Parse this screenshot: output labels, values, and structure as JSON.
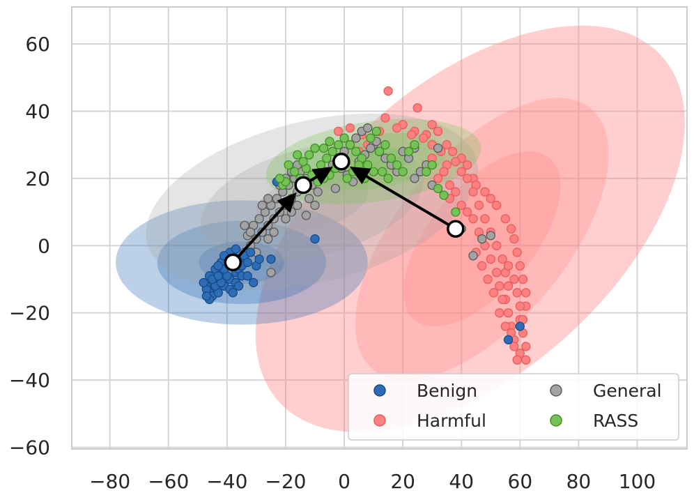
{
  "chart_data": {
    "type": "scatter",
    "title": "",
    "xlabel": "",
    "ylabel": "",
    "xlim": [
      -93,
      117
    ],
    "ylim": [
      -60.5,
      71
    ],
    "x_ticks": [
      -80,
      -60,
      -40,
      -20,
      0,
      20,
      40,
      60,
      80,
      100
    ],
    "y_ticks": [
      60,
      40,
      20,
      0,
      -20,
      -40,
      -60
    ],
    "x_tick_labels": [
      "−80",
      "−60",
      "−40",
      "−20",
      "0",
      "20",
      "40",
      "60",
      "80",
      "100"
    ],
    "y_tick_labels": [
      "60",
      "40",
      "20",
      "0",
      "−20",
      "−40",
      "−60"
    ],
    "grid": true,
    "legend_position": "lower-right",
    "legend": [
      "Benign",
      "Harmful",
      "General",
      "RASS"
    ],
    "series": [
      {
        "name": "Benign",
        "color": "#2e6db5",
        "edge": "#154a8a",
        "centroid": [
          -38,
          -5
        ],
        "ellipse": {
          "cx": -35,
          "cy": -5,
          "rx": 43,
          "ry": 18.5,
          "angle": 0
        },
        "points": [
          [
            -38,
            -5
          ],
          [
            -40,
            -6
          ],
          [
            -42,
            -8
          ],
          [
            -43,
            -10
          ],
          [
            -44,
            -12
          ],
          [
            -45,
            -13
          ],
          [
            -46,
            -14
          ],
          [
            -47,
            -12
          ],
          [
            -45,
            -15
          ],
          [
            -43,
            -14
          ],
          [
            -41,
            -12
          ],
          [
            -39,
            -10
          ],
          [
            -37,
            -8
          ],
          [
            -36,
            -7
          ],
          [
            -35,
            -6
          ],
          [
            -38,
            -3
          ],
          [
            -40,
            -4
          ],
          [
            -42,
            -5
          ],
          [
            -44,
            -7
          ],
          [
            -46,
            -9
          ],
          [
            -47,
            -13
          ],
          [
            -48,
            -11
          ],
          [
            -46,
            -16
          ],
          [
            -44,
            -12
          ],
          [
            -42,
            -11
          ],
          [
            -40,
            -9
          ],
          [
            -41,
            -7
          ],
          [
            -43,
            -6
          ],
          [
            -39,
            -2
          ],
          [
            -37,
            -1
          ],
          [
            -36,
            -4
          ],
          [
            -34,
            -3
          ],
          [
            -35,
            -9
          ],
          [
            -37,
            -11
          ],
          [
            -39,
            -13
          ],
          [
            -45,
            -10
          ],
          [
            -47,
            -15
          ],
          [
            -33,
            -5
          ],
          [
            -32,
            -2
          ],
          [
            -30,
            -6
          ],
          [
            -29,
            -4
          ],
          [
            -33,
            -9
          ],
          [
            -31,
            -11
          ],
          [
            -41,
            -3
          ],
          [
            -43,
            -9
          ],
          [
            -36,
            -12
          ],
          [
            -38,
            -14
          ],
          [
            -25,
            -4
          ],
          [
            -23,
            19
          ],
          [
            -10,
            2
          ],
          [
            56,
            -28
          ],
          [
            60,
            -24
          ]
        ]
      },
      {
        "name": "Harmful",
        "color": "#ff8080",
        "edge": "#e65c5c",
        "centroid": [
          38,
          5
        ],
        "ellipse_outer": {
          "cx": 43,
          "cy": 5,
          "rx": 88,
          "ry": 43,
          "angle": -42
        },
        "ellipse_inner": {
          "cx": 47,
          "cy": 2,
          "rx": 58,
          "ry": 25,
          "angle": -50
        },
        "points": [
          [
            15,
            46
          ],
          [
            25,
            41
          ],
          [
            14,
            38
          ],
          [
            20,
            36
          ],
          [
            24,
            34
          ],
          [
            28,
            33
          ],
          [
            30,
            36
          ],
          [
            32,
            34
          ],
          [
            35,
            30
          ],
          [
            37,
            28
          ],
          [
            40,
            26
          ],
          [
            42,
            24
          ],
          [
            44,
            20
          ],
          [
            45,
            18
          ],
          [
            48,
            16
          ],
          [
            50,
            14
          ],
          [
            52,
            12
          ],
          [
            55,
            8
          ],
          [
            57,
            5
          ],
          [
            58,
            2
          ],
          [
            59,
            -2
          ],
          [
            60,
            -6
          ],
          [
            61,
            -10
          ],
          [
            62,
            -14
          ],
          [
            62,
            -18
          ],
          [
            60,
            -22
          ],
          [
            61,
            -26
          ],
          [
            62,
            -30
          ],
          [
            62,
            -34
          ],
          [
            60,
            -32
          ],
          [
            58,
            -28
          ],
          [
            57,
            -24
          ],
          [
            56,
            -20
          ],
          [
            55,
            -16
          ],
          [
            56,
            -12
          ],
          [
            55,
            -8
          ],
          [
            54,
            -4
          ],
          [
            52,
            0
          ],
          [
            50,
            4
          ],
          [
            48,
            8
          ],
          [
            46,
            12
          ],
          [
            44,
            16
          ],
          [
            42,
            20
          ],
          [
            40,
            22
          ],
          [
            38,
            25
          ],
          [
            36,
            18
          ],
          [
            35,
            24
          ],
          [
            33,
            28
          ],
          [
            30,
            30
          ],
          [
            27,
            32
          ],
          [
            23,
            33
          ],
          [
            18,
            35
          ],
          [
            12,
            34
          ],
          [
            6,
            33
          ],
          [
            2,
            35
          ],
          [
            -2,
            34
          ],
          [
            8,
            30
          ],
          [
            5,
            28
          ],
          [
            28,
            24
          ],
          [
            30,
            26
          ],
          [
            32,
            20
          ],
          [
            34,
            22
          ],
          [
            36,
            14
          ],
          [
            38,
            16
          ],
          [
            40,
            12
          ],
          [
            42,
            10
          ],
          [
            44,
            8
          ],
          [
            46,
            4
          ],
          [
            48,
            0
          ],
          [
            50,
            -4
          ],
          [
            52,
            -8
          ],
          [
            53,
            -12
          ],
          [
            54,
            -16
          ],
          [
            56,
            -6
          ],
          [
            58,
            -10
          ],
          [
            59,
            -14
          ],
          [
            60,
            -18
          ],
          [
            61,
            -22
          ],
          [
            58,
            -30
          ],
          [
            59,
            -34
          ],
          [
            57,
            -26
          ],
          [
            45,
            -2
          ],
          [
            47,
            -6
          ],
          [
            49,
            -10
          ],
          [
            51,
            -14
          ],
          [
            53,
            -20
          ],
          [
            55,
            -24
          ]
        ]
      },
      {
        "name": "General",
        "color": "#a3a3a3",
        "edge": "#595959",
        "centroid": [
          -14,
          18
        ],
        "ellipse": {
          "cx": -11,
          "cy": 13,
          "rx": 58,
          "ry": 24,
          "angle": -14
        },
        "points": [
          [
            -14,
            18
          ],
          [
            -16,
            16
          ],
          [
            -18,
            14
          ],
          [
            -20,
            12
          ],
          [
            -22,
            10
          ],
          [
            -24,
            8
          ],
          [
            -26,
            6
          ],
          [
            -28,
            4
          ],
          [
            -30,
            2
          ],
          [
            -32,
            0
          ],
          [
            -34,
            -2
          ],
          [
            -33,
            3
          ],
          [
            -31,
            6
          ],
          [
            -29,
            8
          ],
          [
            -27,
            10
          ],
          [
            -25,
            12
          ],
          [
            -23,
            14
          ],
          [
            -21,
            16
          ],
          [
            -19,
            18
          ],
          [
            -17,
            20
          ],
          [
            -15,
            22
          ],
          [
            -13,
            20
          ],
          [
            -11,
            18
          ],
          [
            -9,
            16
          ],
          [
            -12,
            14
          ],
          [
            -10,
            12
          ],
          [
            -8,
            20
          ],
          [
            -6,
            22
          ],
          [
            -4,
            24
          ],
          [
            -2,
            26
          ],
          [
            0,
            28
          ],
          [
            2,
            30
          ],
          [
            4,
            32
          ],
          [
            6,
            34
          ],
          [
            8,
            35
          ],
          [
            10,
            30
          ],
          [
            12,
            28
          ],
          [
            14,
            26
          ],
          [
            16,
            24
          ],
          [
            18,
            22
          ],
          [
            20,
            28
          ],
          [
            22,
            26
          ],
          [
            -20,
            8
          ],
          [
            -18,
            10
          ],
          [
            -16,
            12
          ],
          [
            -24,
            4
          ],
          [
            -26,
            2
          ],
          [
            -30,
            -2
          ],
          [
            -32,
            4
          ],
          [
            -34,
            6
          ],
          [
            -28,
            12
          ],
          [
            -26,
            14
          ],
          [
            -22,
            18
          ],
          [
            -20,
            20
          ],
          [
            -18,
            22
          ],
          [
            -16,
            24
          ],
          [
            -13,
            9
          ],
          [
            -25,
            -8
          ],
          [
            -3,
            17
          ],
          [
            5,
            25
          ],
          [
            7,
            27
          ],
          [
            9,
            29
          ],
          [
            11,
            31
          ],
          [
            -1,
            23
          ],
          [
            1,
            21
          ],
          [
            3,
            19
          ],
          [
            24,
            20
          ],
          [
            26,
            22
          ],
          [
            28,
            24
          ],
          [
            30,
            18
          ],
          [
            32,
            29
          ],
          [
            24,
            29
          ],
          [
            40,
            5
          ],
          [
            47,
            2
          ],
          [
            50,
            3
          ],
          [
            44,
            -3
          ]
        ]
      },
      {
        "name": "RASS",
        "color": "#77c257",
        "edge": "#3e8f24",
        "centroid": [
          -1,
          25
        ],
        "ellipse": {
          "cx": 10,
          "cy": 25,
          "rx": 37,
          "ry": 12,
          "angle": -8
        },
        "points": [
          [
            -1,
            25
          ],
          [
            -3,
            23
          ],
          [
            -5,
            21
          ],
          [
            -7,
            20
          ],
          [
            -9,
            19
          ],
          [
            -11,
            21
          ],
          [
            -13,
            23
          ],
          [
            -15,
            20
          ],
          [
            -17,
            22
          ],
          [
            -19,
            24
          ],
          [
            -21,
            18
          ],
          [
            -8,
            24
          ],
          [
            -6,
            26
          ],
          [
            -4,
            28
          ],
          [
            -2,
            30
          ],
          [
            0,
            32
          ],
          [
            2,
            30
          ],
          [
            4,
            28
          ],
          [
            6,
            26
          ],
          [
            8,
            24
          ],
          [
            10,
            22
          ],
          [
            12,
            28
          ],
          [
            14,
            30
          ],
          [
            16,
            26
          ],
          [
            18,
            24
          ],
          [
            20,
            22
          ],
          [
            22,
            28
          ],
          [
            24,
            30
          ],
          [
            -12,
            27
          ],
          [
            -10,
            29
          ],
          [
            -14,
            25
          ],
          [
            -16,
            27
          ],
          [
            1,
            20
          ],
          [
            3,
            22
          ],
          [
            5,
            24
          ],
          [
            7,
            20
          ],
          [
            9,
            32
          ],
          [
            11,
            34
          ],
          [
            -5,
            31
          ],
          [
            -7,
            29
          ],
          [
            28,
            22
          ],
          [
            30,
            24
          ],
          [
            32,
            17
          ],
          [
            34,
            15
          ],
          [
            38,
            10
          ],
          [
            15,
            20
          ],
          [
            13,
            22
          ],
          [
            -20,
            19
          ],
          [
            -22,
            20
          ]
        ]
      }
    ],
    "arrows": [
      {
        "from": [
          -38,
          -5
        ],
        "to": [
          -14,
          18
        ]
      },
      {
        "from": [
          -14,
          18
        ],
        "to": [
          -1,
          25
        ]
      },
      {
        "from": [
          38,
          5
        ],
        "to": [
          -1,
          25
        ]
      }
    ],
    "markers": [
      [
        -38,
        -5
      ],
      [
        -14,
        18
      ],
      [
        -1,
        25
      ],
      [
        38,
        5
      ]
    ]
  }
}
